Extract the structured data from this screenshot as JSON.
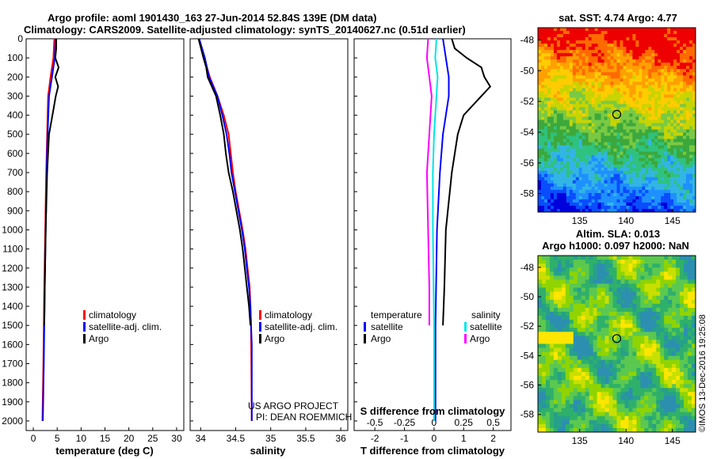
{
  "header": {
    "title_line1": "Argo profile: aoml 1901430_163 27-Jun-2014 52.84S 139E (DM data)",
    "title_line2": "Climatology: CARS2009. Satellite-adjusted climatology: synTS_20140627.nc (0.51d earlier)"
  },
  "colors": {
    "climatology": "#ff0000",
    "satellite": "#0000ff",
    "argo": "#000000",
    "salinity_satellite": "#00e5e5",
    "salinity_argo": "#ff00ff",
    "marker": "#000000"
  },
  "chart_data": [
    {
      "type": "line",
      "panel": "temperature",
      "xlabel": "temperature (deg C)",
      "xlim": [
        -1.5,
        31.5
      ],
      "xticks": [
        0,
        5,
        10,
        15,
        20,
        25,
        30
      ],
      "ylim": [
        2050,
        0
      ],
      "yticks": [
        0,
        100,
        200,
        300,
        400,
        500,
        600,
        700,
        800,
        900,
        1000,
        1100,
        1200,
        1300,
        1400,
        1500,
        1600,
        1700,
        1800,
        1900,
        2000
      ],
      "legend": [
        "climatology",
        "satellite-adj. clim.",
        "Argo"
      ],
      "series": [
        {
          "name": "climatology",
          "depth": [
            0,
            100,
            200,
            300,
            500,
            700,
            1000,
            1300,
            1500,
            1700,
            2000
          ],
          "values": [
            4.4,
            4.2,
            3.6,
            3.1,
            2.9,
            2.7,
            2.5,
            2.3,
            2.2,
            2.1,
            1.9
          ]
        },
        {
          "name": "satellite-adj. clim.",
          "depth": [
            0,
            100,
            200,
            300,
            500,
            700,
            1000,
            1300,
            1500,
            1700,
            2000
          ],
          "values": [
            4.7,
            4.5,
            3.9,
            3.3,
            3.0,
            2.8,
            2.6,
            2.4,
            2.3,
            2.2,
            2.0
          ]
        },
        {
          "name": "Argo",
          "depth": [
            0,
            50,
            100,
            150,
            200,
            250,
            300,
            400,
            500,
            700,
            1000,
            1300,
            1500
          ],
          "values": [
            4.8,
            4.8,
            4.6,
            5.3,
            4.6,
            5.2,
            4.7,
            4.0,
            3.3,
            2.9,
            2.6,
            2.4,
            2.3
          ]
        }
      ]
    },
    {
      "type": "line",
      "panel": "salinity",
      "xlabel": "salinity",
      "xlim": [
        33.85,
        36.1
      ],
      "xticks": [
        34,
        34.5,
        35,
        35.5,
        36
      ],
      "ylim": [
        2050,
        0
      ],
      "legend": [
        "climatology",
        "satellite-adj. clim.",
        "Argo"
      ],
      "series": [
        {
          "name": "climatology",
          "depth": [
            0,
            100,
            200,
            300,
            400,
            500,
            600,
            700,
            800,
            900,
            1000,
            1100,
            1200,
            1300,
            1400,
            1500,
            2000
          ],
          "values": [
            33.97,
            34.05,
            34.13,
            34.24,
            34.33,
            34.4,
            34.43,
            34.46,
            34.5,
            34.55,
            34.6,
            34.64,
            34.67,
            34.7,
            34.71,
            34.72,
            34.73
          ]
        },
        {
          "name": "satellite-adj. clim.",
          "depth": [
            0,
            100,
            200,
            300,
            400,
            500,
            600,
            700,
            800,
            900,
            1000,
            1100,
            1200,
            1300,
            1400,
            1500,
            1600,
            2000
          ],
          "values": [
            33.98,
            34.06,
            34.12,
            34.24,
            34.31,
            34.37,
            34.41,
            34.44,
            34.49,
            34.54,
            34.59,
            34.63,
            34.66,
            34.69,
            34.71,
            34.72,
            34.73,
            34.73
          ]
        },
        {
          "name": "Argo",
          "depth": [
            0,
            100,
            150,
            200,
            300,
            400,
            500,
            600,
            700,
            800,
            900,
            1000,
            1100,
            1200,
            1300,
            1400,
            1500
          ],
          "values": [
            33.97,
            34.04,
            34.08,
            34.1,
            34.22,
            34.28,
            34.33,
            34.36,
            34.4,
            34.46,
            34.51,
            34.56,
            34.6,
            34.63,
            34.66,
            34.69,
            34.71
          ]
        }
      ]
    },
    {
      "type": "line",
      "panel": "differences",
      "xlabel": "T difference from climatology",
      "xlabel_top": "S difference from climatology",
      "xlim": [
        -2.7,
        2.6
      ],
      "xticks": [
        -2,
        -1,
        0,
        1,
        2
      ],
      "xticks_top": [
        "-0.5",
        "-0.25",
        "0",
        "0.25",
        "0.5"
      ],
      "ylim": [
        2050,
        0
      ],
      "legend_left_title": "temperature",
      "legend_right_title": "salinity",
      "legend_left": [
        "satellite",
        "Argo"
      ],
      "legend_right": [
        "satellite",
        "Argo"
      ],
      "series": [
        {
          "name": "T satellite",
          "depth": [
            0,
            100,
            200,
            300,
            500,
            700,
            1000,
            1500,
            2000
          ],
          "values": [
            0.3,
            0.4,
            0.5,
            0.5,
            0.3,
            0.2,
            0.1,
            0.05,
            0.05
          ]
        },
        {
          "name": "T Argo",
          "depth": [
            0,
            50,
            100,
            150,
            200,
            250,
            300,
            400,
            500,
            700,
            1000,
            1300,
            1500
          ],
          "values": [
            0.6,
            0.7,
            1.1,
            1.6,
            1.7,
            1.9,
            1.6,
            1.0,
            0.8,
            0.6,
            0.4,
            0.35,
            0.3
          ]
        },
        {
          "name": "S satellite",
          "depth": [
            0,
            100,
            200,
            300,
            500,
            700,
            1000,
            1500,
            2000
          ],
          "values": [
            0.02,
            0.01,
            0.03,
            0.02,
            0.0,
            -0.01,
            -0.01,
            0.0,
            0.0
          ]
        },
        {
          "name": "S Argo",
          "depth": [
            0,
            100,
            200,
            300,
            500,
            700,
            1000,
            1300,
            1500
          ],
          "values": [
            -0.05,
            -0.06,
            -0.04,
            -0.02,
            -0.04,
            -0.06,
            -0.05,
            -0.04,
            -0.04
          ]
        }
      ]
    },
    {
      "type": "heatmap",
      "panel": "sst-map",
      "title": "sat. SST: 4.74  Argo: 4.77",
      "xticks": [
        135,
        140,
        145
      ],
      "yticks": [
        -48,
        -50,
        -52,
        -54,
        -56,
        -58
      ],
      "xlim": [
        130.5,
        147.5
      ],
      "ylim": [
        -59.2,
        -47.2
      ],
      "marker": {
        "lon": 139,
        "lat": -52.84
      }
    },
    {
      "type": "heatmap",
      "panel": "sla-map",
      "title": "Altim. SLA: 0.013",
      "subtitle": "Argo h1000: 0.097  h2000: NaN",
      "xticks": [
        135,
        140,
        145
      ],
      "yticks": [
        -48,
        -50,
        -52,
        -54,
        -56,
        -58
      ],
      "xlim": [
        130.5,
        147.5
      ],
      "ylim": [
        -59.2,
        -47.2
      ],
      "marker": {
        "lon": 139,
        "lat": -52.84
      }
    }
  ],
  "annotations": {
    "project": "US ARGO PROJECT",
    "pi": "PI: DEAN ROEMMICH",
    "imos": "©IMOS 13-Dec-2016 19:25:08"
  }
}
